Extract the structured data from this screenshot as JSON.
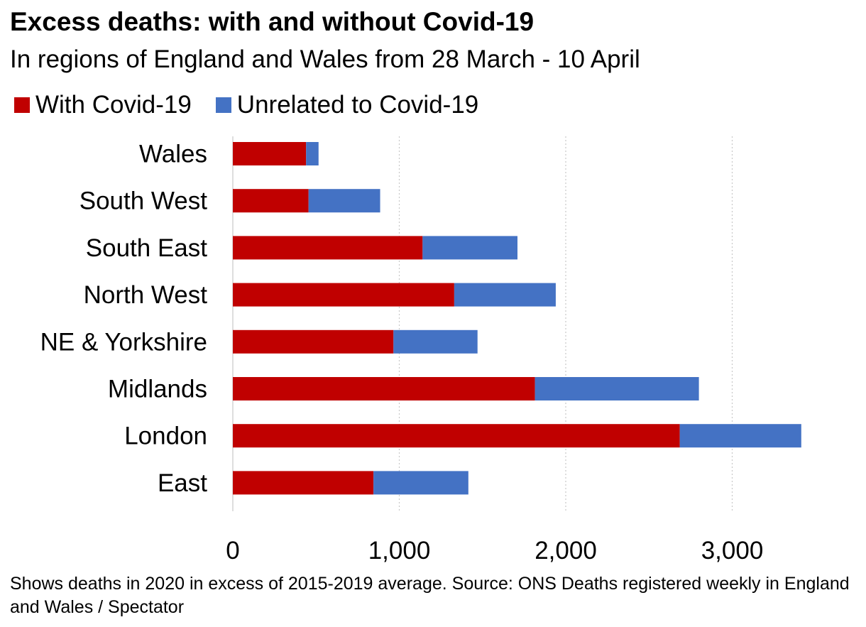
{
  "chart_data": {
    "type": "bar",
    "orientation": "horizontal",
    "stacked": true,
    "title": "Excess deaths: with and without Covid-19",
    "subtitle": "In regions of England and Wales from 28 March - 10 April",
    "categories": [
      "Wales",
      "South West",
      "South East",
      "North West",
      "NE & Yorkshire",
      "Midlands",
      "London",
      "East"
    ],
    "series": [
      {
        "name": "With Covid-19",
        "color": "#C00000",
        "values": [
          440,
          455,
          1140,
          1330,
          965,
          1815,
          2685,
          845
        ]
      },
      {
        "name": "Unrelated to Covid-19",
        "color": "#4472C4",
        "values": [
          75,
          430,
          570,
          610,
          505,
          985,
          730,
          570
        ]
      }
    ],
    "xlim": [
      0,
      3400
    ],
    "xticks": [
      0,
      1000,
      2000,
      3000
    ],
    "xtick_labels": [
      "0",
      "1,000",
      "2,000",
      "3,000"
    ],
    "grid": "vertical-dotted",
    "legend": "top-left",
    "footnote": "Shows deaths in 2020 in excess of 2015-2019 average. Source: ONS Deaths registered weekly in England and Wales / Spectator"
  }
}
